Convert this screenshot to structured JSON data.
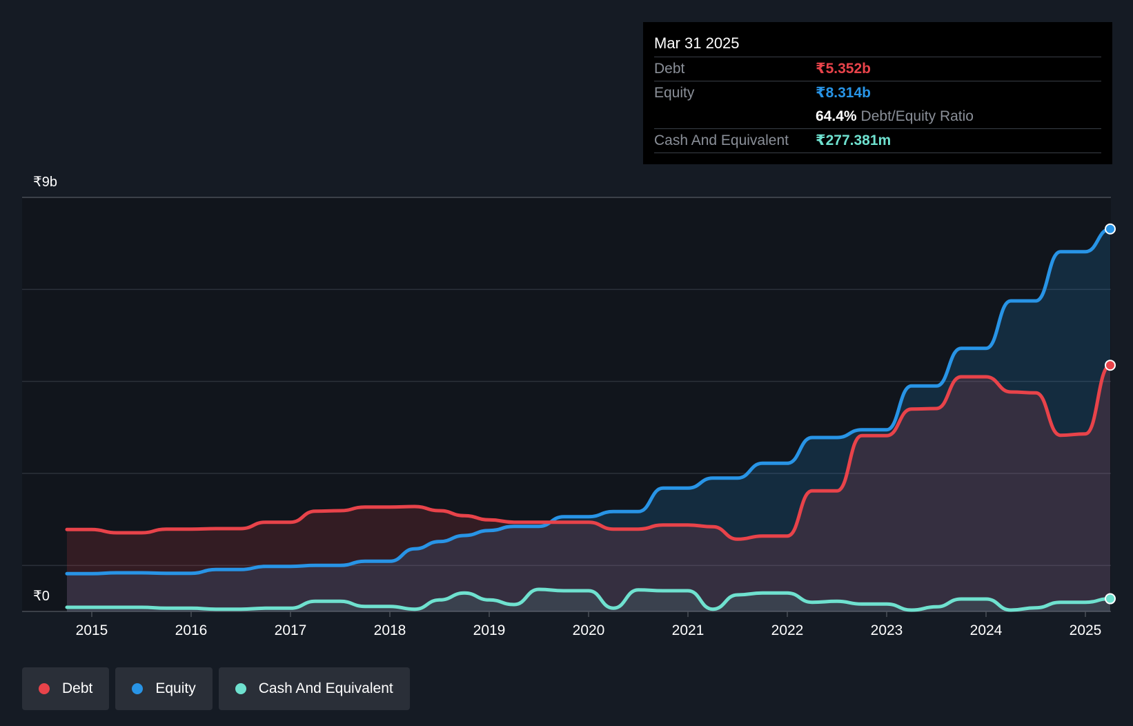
{
  "tooltip": {
    "date": "Mar 31 2025",
    "debt_label": "Debt",
    "debt_value": "₹5.352b",
    "equity_label": "Equity",
    "equity_value": "₹8.314b",
    "ratio_value": "64.4%",
    "ratio_label": "Debt/Equity Ratio",
    "cash_label": "Cash And Equivalent",
    "cash_value": "₹277.381m"
  },
  "legend": {
    "debt": "Debt",
    "equity": "Equity",
    "cash": "Cash And Equivalent"
  },
  "colors": {
    "debt": "#e8434a",
    "equity": "#2894e6",
    "cash": "#6fe1cf"
  },
  "chart_data": {
    "type": "line",
    "title": "",
    "xlabel": "",
    "ylabel": "",
    "ylim": [
      0,
      9
    ],
    "y_unit": "₹b",
    "y_tick_labels": [
      {
        "value": 9,
        "label": "₹9b"
      },
      {
        "value": 0,
        "label": "₹0"
      }
    ],
    "x_ticks": [
      2015,
      2016,
      2017,
      2018,
      2019,
      2020,
      2021,
      2022,
      2023,
      2024,
      2025
    ],
    "xlim": [
      2014.74,
      2025.26
    ],
    "series": [
      {
        "name": "Debt",
        "points": [
          [
            2014.75,
            1.78
          ],
          [
            2015.0,
            1.78
          ],
          [
            2015.25,
            1.71
          ],
          [
            2015.5,
            1.71
          ],
          [
            2015.75,
            1.79
          ],
          [
            2016.0,
            1.79
          ],
          [
            2016.25,
            1.8
          ],
          [
            2016.5,
            1.8
          ],
          [
            2016.75,
            1.94
          ],
          [
            2017.0,
            1.94
          ],
          [
            2017.25,
            2.18
          ],
          [
            2017.5,
            2.19
          ],
          [
            2017.75,
            2.27
          ],
          [
            2018.0,
            2.27
          ],
          [
            2018.25,
            2.28
          ],
          [
            2018.5,
            2.19
          ],
          [
            2018.75,
            2.08
          ],
          [
            2019.0,
            1.99
          ],
          [
            2019.25,
            1.94
          ],
          [
            2019.5,
            1.94
          ],
          [
            2019.75,
            1.94
          ],
          [
            2020.0,
            1.94
          ],
          [
            2020.25,
            1.79
          ],
          [
            2020.5,
            1.79
          ],
          [
            2020.75,
            1.88
          ],
          [
            2021.0,
            1.88
          ],
          [
            2021.25,
            1.84
          ],
          [
            2021.5,
            1.57
          ],
          [
            2021.75,
            1.64
          ],
          [
            2022.0,
            1.64
          ],
          [
            2022.25,
            2.62
          ],
          [
            2022.5,
            2.62
          ],
          [
            2022.75,
            3.82
          ],
          [
            2023.0,
            3.82
          ],
          [
            2023.25,
            4.4
          ],
          [
            2023.5,
            4.41
          ],
          [
            2023.75,
            5.1
          ],
          [
            2024.0,
            5.1
          ],
          [
            2024.25,
            4.77
          ],
          [
            2024.5,
            4.75
          ],
          [
            2024.75,
            3.83
          ],
          [
            2025.0,
            3.86
          ],
          [
            2025.25,
            5.352
          ]
        ]
      },
      {
        "name": "Equity",
        "points": [
          [
            2014.75,
            0.82
          ],
          [
            2015.0,
            0.82
          ],
          [
            2015.25,
            0.84
          ],
          [
            2015.5,
            0.84
          ],
          [
            2015.75,
            0.83
          ],
          [
            2016.0,
            0.83
          ],
          [
            2016.25,
            0.91
          ],
          [
            2016.5,
            0.91
          ],
          [
            2016.75,
            0.98
          ],
          [
            2017.0,
            0.98
          ],
          [
            2017.25,
            1.0
          ],
          [
            2017.5,
            1.0
          ],
          [
            2017.75,
            1.09
          ],
          [
            2018.0,
            1.09
          ],
          [
            2018.25,
            1.36
          ],
          [
            2018.5,
            1.52
          ],
          [
            2018.75,
            1.65
          ],
          [
            2019.0,
            1.76
          ],
          [
            2019.25,
            1.85
          ],
          [
            2019.5,
            1.85
          ],
          [
            2019.75,
            2.06
          ],
          [
            2020.0,
            2.06
          ],
          [
            2020.25,
            2.17
          ],
          [
            2020.5,
            2.17
          ],
          [
            2020.75,
            2.68
          ],
          [
            2021.0,
            2.68
          ],
          [
            2021.25,
            2.9
          ],
          [
            2021.5,
            2.9
          ],
          [
            2021.75,
            3.22
          ],
          [
            2022.0,
            3.22
          ],
          [
            2022.25,
            3.78
          ],
          [
            2022.5,
            3.78
          ],
          [
            2022.75,
            3.95
          ],
          [
            2023.0,
            3.95
          ],
          [
            2023.25,
            4.9
          ],
          [
            2023.5,
            4.9
          ],
          [
            2023.75,
            5.72
          ],
          [
            2024.0,
            5.72
          ],
          [
            2024.25,
            6.75
          ],
          [
            2024.5,
            6.75
          ],
          [
            2024.75,
            7.82
          ],
          [
            2025.0,
            7.82
          ],
          [
            2025.25,
            8.314
          ]
        ]
      },
      {
        "name": "Cash And Equivalent",
        "points": [
          [
            2014.75,
            0.09
          ],
          [
            2015.0,
            0.09
          ],
          [
            2015.25,
            0.09
          ],
          [
            2015.5,
            0.09
          ],
          [
            2015.75,
            0.07
          ],
          [
            2016.0,
            0.07
          ],
          [
            2016.25,
            0.05
          ],
          [
            2016.5,
            0.05
          ],
          [
            2016.75,
            0.07
          ],
          [
            2017.0,
            0.07
          ],
          [
            2017.25,
            0.22
          ],
          [
            2017.5,
            0.22
          ],
          [
            2017.75,
            0.11
          ],
          [
            2018.0,
            0.11
          ],
          [
            2018.25,
            0.05
          ],
          [
            2018.5,
            0.25
          ],
          [
            2018.75,
            0.4
          ],
          [
            2019.0,
            0.25
          ],
          [
            2019.25,
            0.15
          ],
          [
            2019.5,
            0.48
          ],
          [
            2019.75,
            0.45
          ],
          [
            2020.0,
            0.45
          ],
          [
            2020.25,
            0.07
          ],
          [
            2020.5,
            0.47
          ],
          [
            2020.75,
            0.45
          ],
          [
            2021.0,
            0.45
          ],
          [
            2021.25,
            0.05
          ],
          [
            2021.5,
            0.36
          ],
          [
            2021.75,
            0.4
          ],
          [
            2022.0,
            0.4
          ],
          [
            2022.25,
            0.2
          ],
          [
            2022.5,
            0.22
          ],
          [
            2022.75,
            0.16
          ],
          [
            2023.0,
            0.16
          ],
          [
            2023.25,
            0.03
          ],
          [
            2023.5,
            0.1
          ],
          [
            2023.75,
            0.27
          ],
          [
            2024.0,
            0.27
          ],
          [
            2024.25,
            0.03
          ],
          [
            2024.5,
            0.08
          ],
          [
            2024.75,
            0.2
          ],
          [
            2025.0,
            0.2
          ],
          [
            2025.25,
            0.277
          ]
        ]
      }
    ],
    "legend_position": "bottom-left",
    "grid": true
  }
}
